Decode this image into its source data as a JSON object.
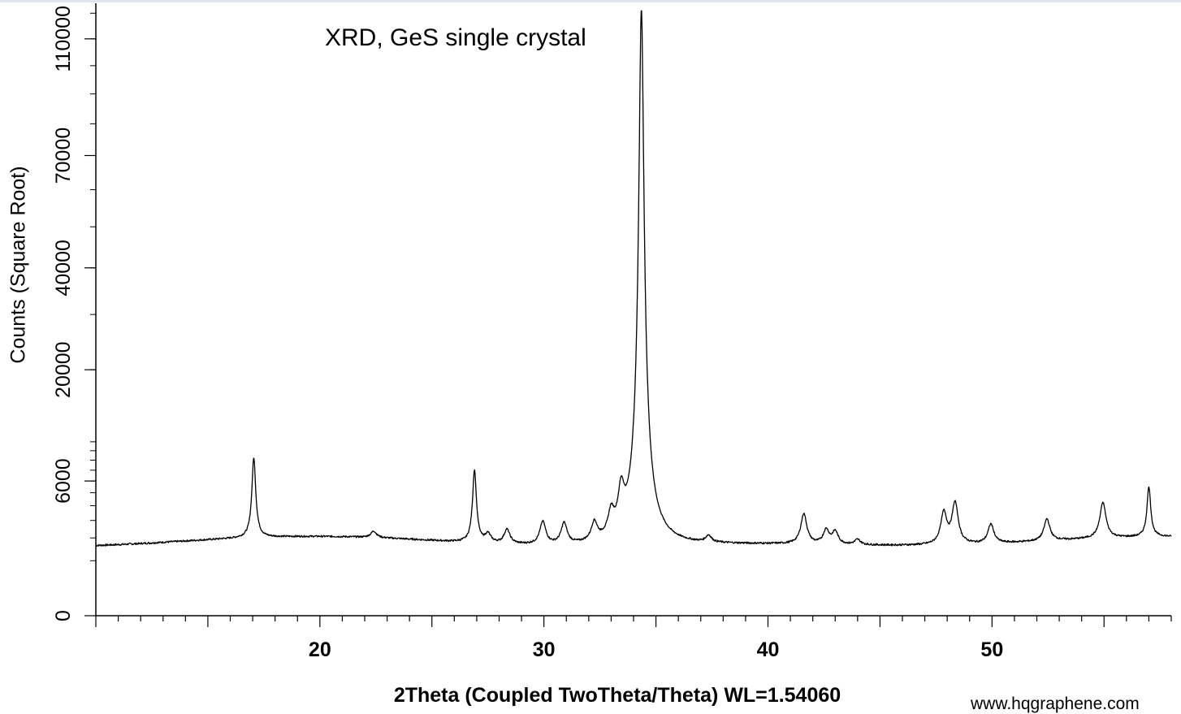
{
  "chart_data": {
    "type": "line",
    "title": "XRD, GeS single crystal",
    "xlabel": "2Theta (Coupled TwoTheta/Theta) WL=1.54060",
    "ylabel": "Counts (Square Root)",
    "y_scale": "sqrt",
    "xlim": [
      10,
      58
    ],
    "ylim": [
      0,
      124000
    ],
    "x_ticks": [
      "20",
      "30",
      "40",
      "50"
    ],
    "y_ticks": [
      "0",
      "6000",
      "20000",
      "40000",
      "70000",
      "110000"
    ],
    "grid": false,
    "series": [
      {
        "baseline_counts": 1750,
        "peaks": [
          {
            "two_theta": 17.05,
            "counts": 8000
          },
          {
            "two_theta": 22.4,
            "counts": 2100
          },
          {
            "two_theta": 26.9,
            "counts": 7000
          },
          {
            "two_theta": 27.5,
            "counts": 2200
          },
          {
            "two_theta": 28.35,
            "counts": 2500
          },
          {
            "two_theta": 29.95,
            "counts": 3000
          },
          {
            "two_theta": 30.9,
            "counts": 2900
          },
          {
            "two_theta": 32.25,
            "counts": 2800
          },
          {
            "two_theta": 33.0,
            "counts": 3200
          },
          {
            "two_theta": 33.45,
            "counts": 4700
          },
          {
            "two_theta": 34.35,
            "counts": 122000
          },
          {
            "two_theta": 37.35,
            "counts": 2100
          },
          {
            "two_theta": 41.6,
            "counts": 3500
          },
          {
            "two_theta": 42.6,
            "counts": 2500
          },
          {
            "two_theta": 43.0,
            "counts": 2400
          },
          {
            "two_theta": 44.0,
            "counts": 2000
          },
          {
            "two_theta": 47.85,
            "counts": 3600
          },
          {
            "two_theta": 48.35,
            "counts": 4300
          },
          {
            "two_theta": 49.95,
            "counts": 2800
          },
          {
            "two_theta": 52.45,
            "counts": 3000
          },
          {
            "two_theta": 54.95,
            "counts": 4000
          },
          {
            "two_theta": 57.0,
            "counts": 5200
          }
        ]
      }
    ]
  },
  "watermark": "www.hqgraphene.com"
}
